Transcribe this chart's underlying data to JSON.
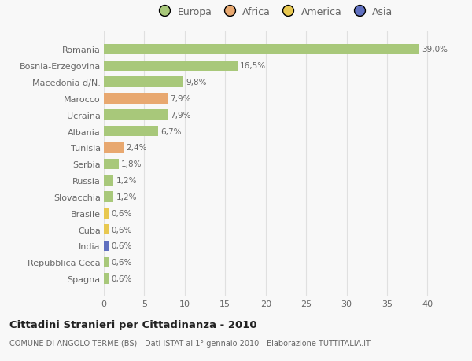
{
  "categories": [
    "Romania",
    "Bosnia-Erzegovina",
    "Macedonia d/N.",
    "Marocco",
    "Ucraina",
    "Albania",
    "Tunisia",
    "Serbia",
    "Russia",
    "Slovacchia",
    "Brasile",
    "Cuba",
    "India",
    "Repubblica Ceca",
    "Spagna"
  ],
  "values": [
    39.0,
    16.5,
    9.8,
    7.9,
    7.9,
    6.7,
    2.4,
    1.8,
    1.2,
    1.2,
    0.6,
    0.6,
    0.6,
    0.6,
    0.6
  ],
  "labels": [
    "39,0%",
    "16,5%",
    "9,8%",
    "7,9%",
    "7,9%",
    "6,7%",
    "2,4%",
    "1,8%",
    "1,2%",
    "1,2%",
    "0,6%",
    "0,6%",
    "0,6%",
    "0,6%",
    "0,6%"
  ],
  "colors": [
    "#a8c87a",
    "#a8c87a",
    "#a8c87a",
    "#e8a870",
    "#a8c87a",
    "#a8c87a",
    "#e8a870",
    "#a8c87a",
    "#a8c87a",
    "#a8c87a",
    "#e8c850",
    "#e8c850",
    "#6070c0",
    "#a8c87a",
    "#a8c87a"
  ],
  "legend_labels": [
    "Europa",
    "Africa",
    "America",
    "Asia"
  ],
  "legend_colors": [
    "#a8c87a",
    "#e8a870",
    "#e8c850",
    "#6070c0"
  ],
  "title": "Cittadini Stranieri per Cittadinanza - 2010",
  "subtitle": "COMUNE DI ANGOLO TERME (BS) - Dati ISTAT al 1° gennaio 2010 - Elaborazione TUTTITALIA.IT",
  "xlim": [
    0,
    42
  ],
  "xticks": [
    0,
    5,
    10,
    15,
    20,
    25,
    30,
    35,
    40
  ],
  "background_color": "#f8f8f8",
  "grid_color": "#e0e0e0",
  "text_color": "#666666"
}
